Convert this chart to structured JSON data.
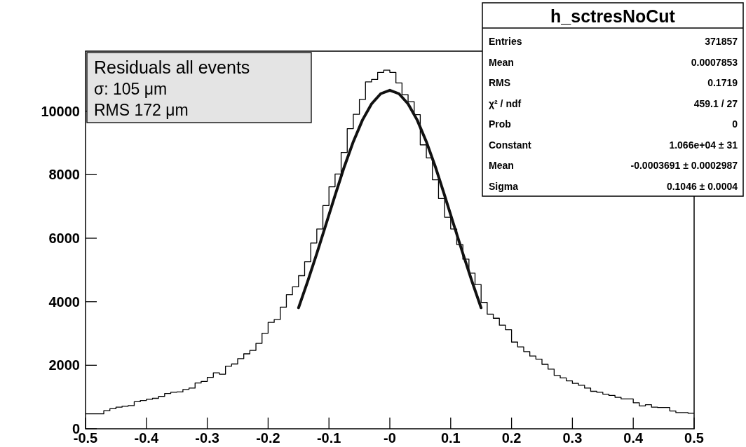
{
  "chart_data": {
    "type": "histogram",
    "series": [
      {
        "color": "#000000",
        "bins": [
          -0.5,
          -0.49,
          -0.48,
          -0.47,
          -0.46,
          -0.45,
          -0.44,
          -0.43,
          -0.42,
          -0.41,
          -0.4,
          -0.39,
          -0.38,
          -0.37,
          -0.36,
          -0.35,
          -0.34,
          -0.33,
          -0.32,
          -0.31,
          -0.3,
          -0.29,
          -0.28,
          -0.27,
          -0.26,
          -0.25,
          -0.24,
          -0.23,
          -0.22,
          -0.21,
          -0.2,
          -0.19,
          -0.18,
          -0.17,
          -0.16,
          -0.15,
          -0.14,
          -0.13,
          -0.12,
          -0.11,
          -0.1,
          -0.09,
          -0.08,
          -0.07,
          -0.06,
          -0.05,
          -0.04,
          -0.03,
          -0.02,
          -0.01,
          0,
          0.01,
          0.02,
          0.03,
          0.04,
          0.05,
          0.06,
          0.07,
          0.08,
          0.09,
          0.1,
          0.11,
          0.12,
          0.13,
          0.14,
          0.15,
          0.16,
          0.17,
          0.18,
          0.19,
          0.2,
          0.21,
          0.22,
          0.23,
          0.24,
          0.25,
          0.26,
          0.27,
          0.28,
          0.29,
          0.3,
          0.31,
          0.32,
          0.33,
          0.34,
          0.35,
          0.36,
          0.37,
          0.38,
          0.39,
          0.4,
          0.41,
          0.42,
          0.43,
          0.44,
          0.45,
          0.46,
          0.47,
          0.48,
          0.49,
          0.5
        ],
        "values": [
          470,
          470,
          470,
          570,
          630,
          680,
          710,
          730,
          850,
          890,
          930,
          960,
          1020,
          1110,
          1150,
          1160,
          1240,
          1280,
          1440,
          1490,
          1620,
          1760,
          1720,
          1970,
          2040,
          2210,
          2360,
          2470,
          2690,
          3010,
          3350,
          3440,
          3830,
          4220,
          4470,
          4820,
          5260,
          5850,
          6290,
          7030,
          7620,
          8020,
          8700,
          9450,
          9900,
          10370,
          10920,
          11000,
          11220,
          11290,
          11220,
          10890,
          10520,
          10300,
          9890,
          8940,
          8530,
          7840,
          7250,
          6660,
          6290,
          5800,
          5340,
          4900,
          4540,
          3980,
          3610,
          3480,
          3260,
          3120,
          2730,
          2580,
          2430,
          2290,
          2190,
          2030,
          1880,
          1680,
          1600,
          1510,
          1430,
          1370,
          1280,
          1180,
          1150,
          1090,
          1050,
          990,
          940,
          940,
          820,
          720,
          760,
          680,
          670,
          670,
          560,
          510,
          510,
          490
        ]
      },
      {
        "type": "line",
        "color": "#111111",
        "x": [
          -0.15,
          -0.135,
          -0.12,
          -0.105,
          -0.09,
          -0.075,
          -0.06,
          -0.045,
          -0.03,
          -0.015,
          0,
          0.015,
          0.03,
          0.045,
          0.06,
          0.075,
          0.09,
          0.105,
          0.12,
          0.135,
          0.15
        ],
        "values": [
          3810,
          4640,
          5520,
          6430,
          7350,
          8240,
          9040,
          9720,
          10230,
          10550,
          10660,
          10550,
          10230,
          9720,
          9040,
          8240,
          7350,
          6430,
          5520,
          4640,
          3810
        ]
      }
    ],
    "xlim": [
      -0.5,
      0.5
    ],
    "xticks": [
      -0.5,
      -0.4,
      -0.3,
      -0.2,
      -0.1,
      {
        "value": 0,
        "label": "-0"
      },
      0.1,
      0.2,
      0.3,
      0.4,
      0.5
    ],
    "ylim": [
      0,
      11890
    ],
    "yticks": [
      0,
      2000,
      4000,
      6000,
      8000,
      10000
    ],
    "annotations": [
      "Residuals all events",
      "σ: 105 μm",
      "RMS 172 μm",
      "h_sctresNoCut",
      "Entries",
      "371857",
      "Mean",
      "0.0007853",
      "RMS",
      "0.1719",
      "χ² / ndf",
      "459.1 / 27",
      "Prob",
      "0",
      "Constant",
      "1.066e+04 ± 31",
      "Mean",
      "-0.0003691 ± 0.0002987",
      "Sigma",
      "0.1046 ± 0.0004"
    ]
  }
}
